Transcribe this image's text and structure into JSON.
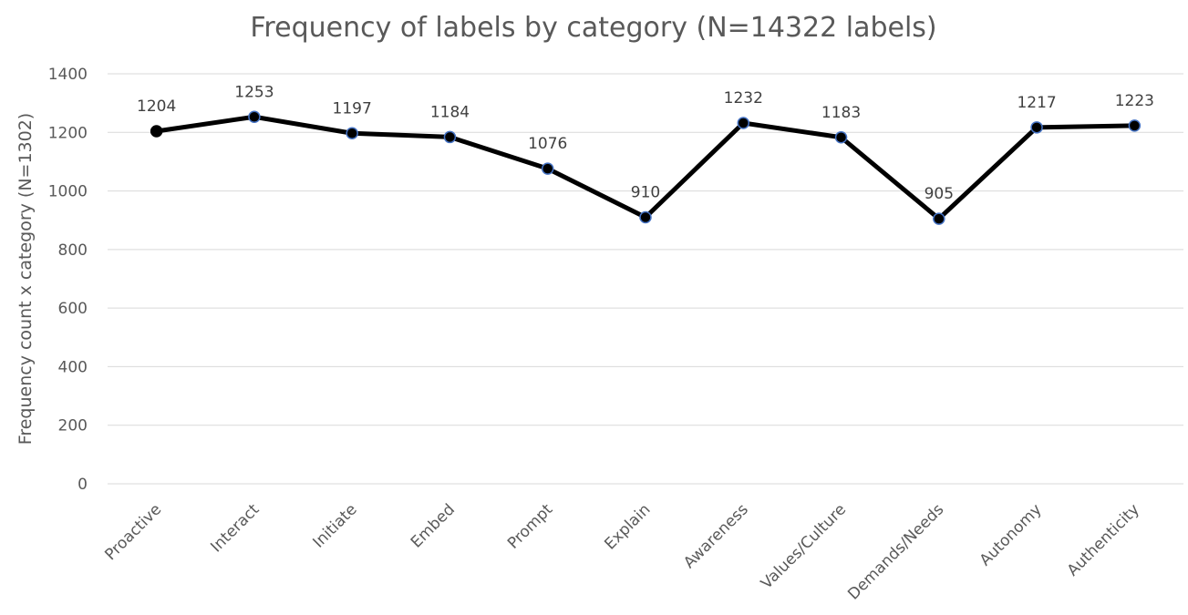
{
  "chart_data": {
    "type": "line",
    "title": "Frequency of labels by category (N=14322 labels)",
    "xlabel": "",
    "ylabel": "Frequency count x category (N=1302)",
    "categories": [
      "Proactive",
      "Interact",
      "Initiate",
      "Embed",
      "Prompt",
      "Explain",
      "Awareness",
      "Values/Culture",
      "Demands/Needs",
      "Autonomy",
      "Authenticity"
    ],
    "series": [
      {
        "values": [
          1204,
          1253,
          1197,
          1184,
          1076,
          910,
          1232,
          1183,
          905,
          1217,
          1223
        ],
        "color": "#000000",
        "marker_edge_color": "#4472c4"
      }
    ],
    "ylim": [
      0,
      1400
    ],
    "yticks": [
      0,
      200,
      400,
      600,
      800,
      1000,
      1200,
      1400
    ],
    "grid": "horizontal",
    "data_labels": true,
    "legend": "none"
  }
}
